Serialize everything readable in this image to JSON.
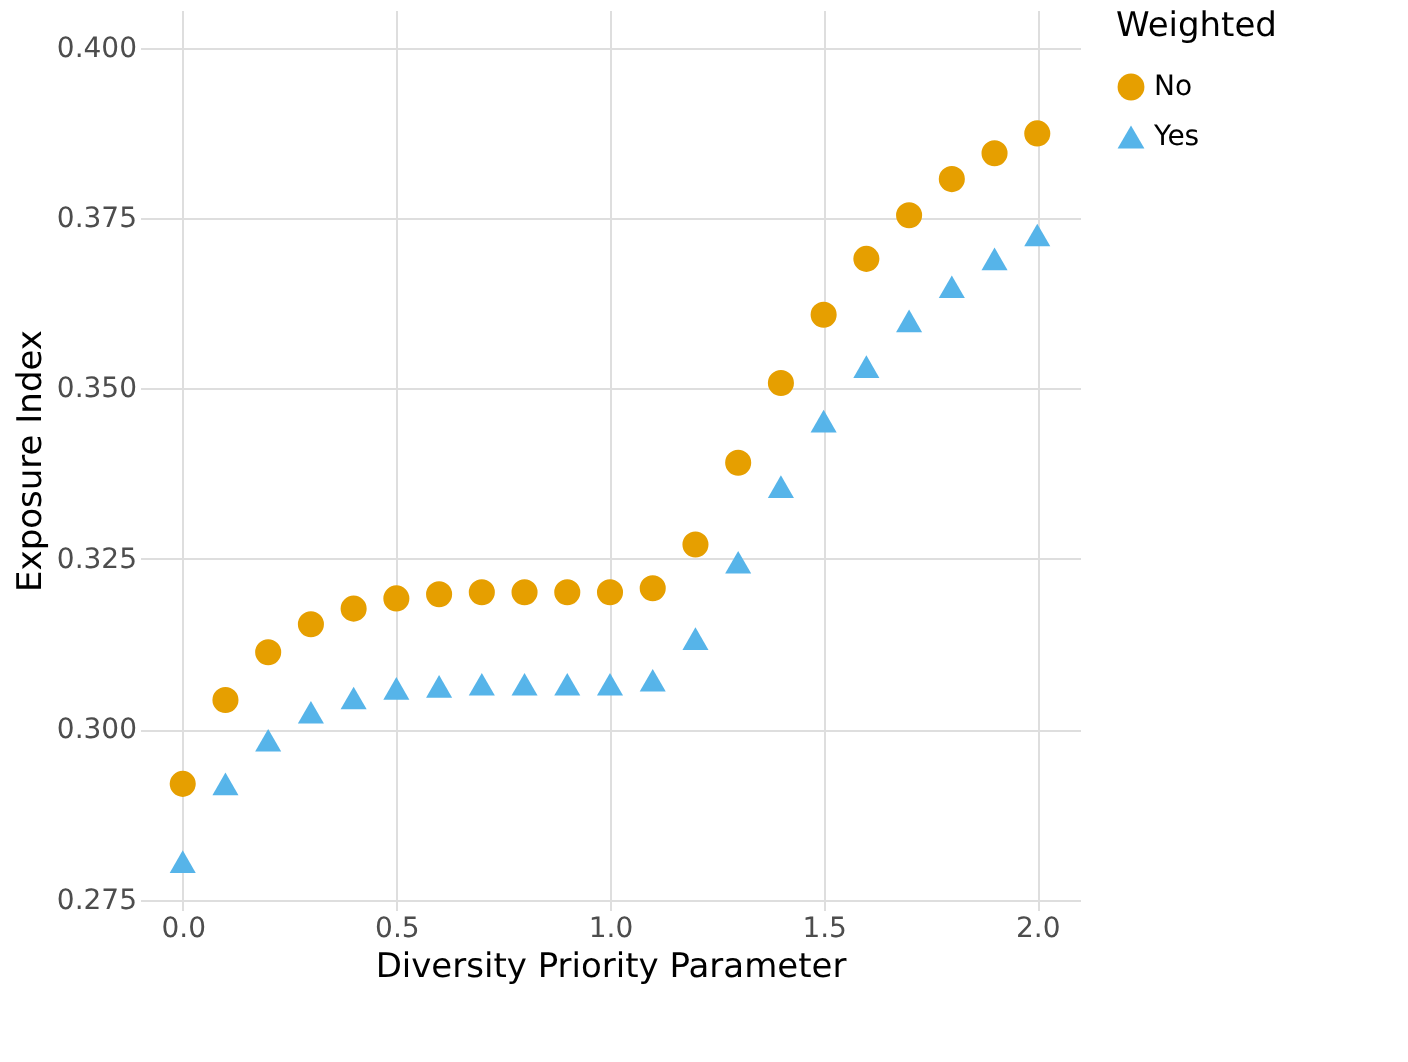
{
  "chart_data": {
    "type": "scatter",
    "xlabel": "Diversity Priority Parameter",
    "ylabel": "Exposure Index",
    "legend_title": "Weighted",
    "legend": "right",
    "grid": true,
    "x": [
      0.0,
      0.1,
      0.2,
      0.3,
      0.4,
      0.5,
      0.6,
      0.7,
      0.8,
      0.9,
      1.0,
      1.1,
      1.2,
      1.3,
      1.4,
      1.5,
      1.6,
      1.7,
      1.8,
      1.9,
      2.0
    ],
    "xlim": [
      -0.1,
      2.1
    ],
    "ylim": [
      0.2735,
      0.4055
    ],
    "xticks": [
      {
        "value": 0,
        "label": "0.0"
      },
      {
        "value": 0.5,
        "label": "0.5"
      },
      {
        "value": 1,
        "label": "1.0"
      },
      {
        "value": 1.5,
        "label": "1.5"
      },
      {
        "value": 2,
        "label": "2.0"
      }
    ],
    "yticks": [
      0.275,
      {
        "value": 0.3,
        "label": "0.300"
      },
      0.325,
      {
        "value": 0.35,
        "label": "0.350"
      },
      0.375,
      {
        "value": 0.4,
        "label": "0.400"
      }
    ],
    "series": [
      {
        "name": "No",
        "color": "#e69f00",
        "marker": "circle",
        "values": [
          0.292,
          0.3043,
          0.3113,
          0.3154,
          0.3177,
          0.3192,
          0.3198,
          0.3201,
          0.3201,
          0.3201,
          0.3201,
          0.3207,
          0.3271,
          0.3391,
          0.3508,
          0.3608,
          0.369,
          0.3754,
          0.3807,
          0.3845,
          0.3874
        ]
      },
      {
        "name": "Yes",
        "color": "#56b4e9",
        "marker": "triangle",
        "values": [
          0.2806,
          0.292,
          0.2984,
          0.3025,
          0.3046,
          0.306,
          0.3063,
          0.3066,
          0.3066,
          0.3066,
          0.3066,
          0.3072,
          0.3133,
          0.3245,
          0.3356,
          0.3452,
          0.3532,
          0.3599,
          0.3649,
          0.369,
          0.3725
        ]
      }
    ]
  }
}
